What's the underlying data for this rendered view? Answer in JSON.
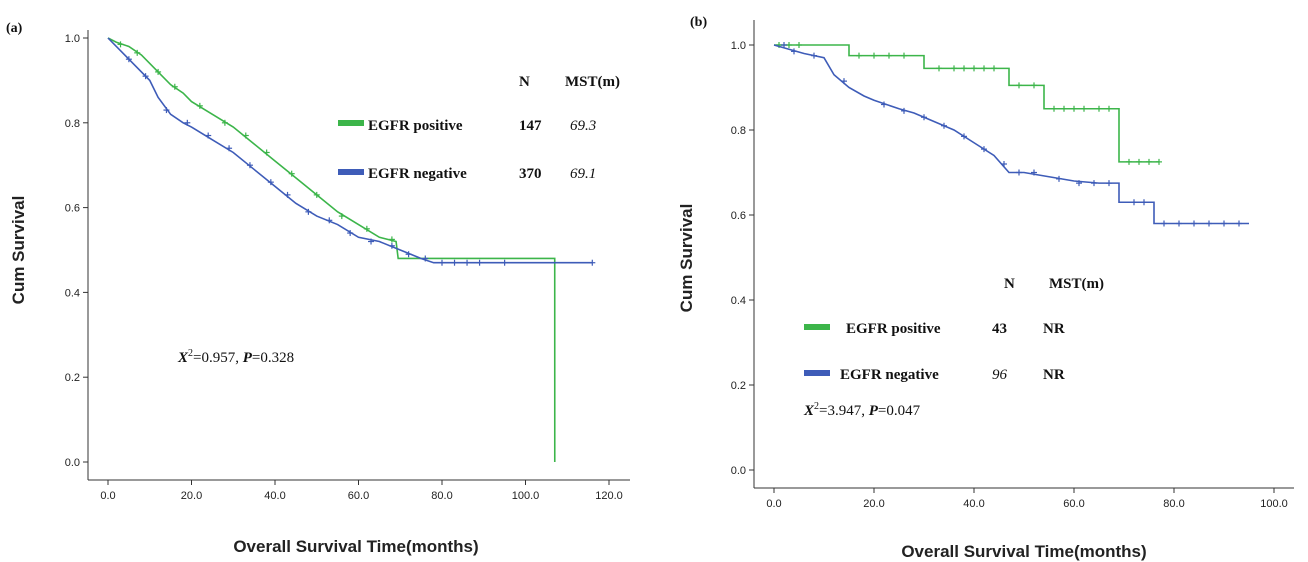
{
  "chart_data": [
    {
      "type": "line",
      "panel_label": "(a)",
      "xlabel": "Overall Survival Time(months)",
      "ylabel": "Cum Survival",
      "xlim": [
        0,
        120
      ],
      "ylim": [
        0,
        1
      ],
      "x_ticks": [
        "0.0",
        "20.0",
        "40.0",
        "60.0",
        "80.0",
        "100.0",
        "120.0"
      ],
      "y_ticks": [
        "0.0",
        "0.2",
        "0.4",
        "0.6",
        "0.8",
        "1.0"
      ],
      "legend_header": {
        "n": "N",
        "mst": "MST(m)"
      },
      "stat_text": {
        "chi": "X",
        "sup": "2",
        "eq": "=0.957, ",
        "p": "P",
        "pval": "=0.328"
      },
      "series": [
        {
          "name": "EGFR positive",
          "n": "147",
          "mst": "69.3",
          "color": "#3cb54a",
          "x": [
            0,
            2,
            5,
            8,
            10,
            12,
            15,
            18,
            20,
            25,
            30,
            35,
            40,
            45,
            50,
            55,
            60,
            65,
            69,
            69.5,
            80,
            90,
            100,
            107,
            107.01
          ],
          "y": [
            1,
            0.99,
            0.98,
            0.96,
            0.94,
            0.92,
            0.89,
            0.87,
            0.85,
            0.82,
            0.79,
            0.75,
            0.71,
            0.67,
            0.63,
            0.59,
            0.56,
            0.53,
            0.52,
            0.48,
            0.48,
            0.48,
            0.48,
            0.48,
            0
          ],
          "censors": [
            [
              3,
              0.985
            ],
            [
              7,
              0.965
            ],
            [
              12,
              0.92
            ],
            [
              16,
              0.885
            ],
            [
              22,
              0.84
            ],
            [
              28,
              0.8
            ],
            [
              33,
              0.77
            ],
            [
              38,
              0.73
            ],
            [
              44,
              0.68
            ],
            [
              50,
              0.63
            ],
            [
              56,
              0.58
            ],
            [
              62,
              0.55
            ],
            [
              68,
              0.525
            ]
          ]
        },
        {
          "name": "EGFR negative",
          "n": "370",
          "mst": "69.1",
          "color": "#3e5cb8",
          "x": [
            0,
            3,
            6,
            10,
            12,
            15,
            18,
            20,
            25,
            30,
            35,
            40,
            45,
            50,
            55,
            60,
            65,
            70,
            75,
            78,
            90,
            100,
            116
          ],
          "y": [
            1,
            0.97,
            0.94,
            0.9,
            0.86,
            0.82,
            0.8,
            0.79,
            0.76,
            0.73,
            0.69,
            0.65,
            0.61,
            0.58,
            0.56,
            0.53,
            0.52,
            0.5,
            0.48,
            0.47,
            0.47,
            0.47,
            0.47
          ],
          "censors": [
            [
              5,
              0.95
            ],
            [
              9,
              0.91
            ],
            [
              14,
              0.83
            ],
            [
              19,
              0.8
            ],
            [
              24,
              0.77
            ],
            [
              29,
              0.74
            ],
            [
              34,
              0.7
            ],
            [
              39,
              0.66
            ],
            [
              43,
              0.63
            ],
            [
              48,
              0.59
            ],
            [
              53,
              0.57
            ],
            [
              58,
              0.54
            ],
            [
              63,
              0.52
            ],
            [
              68,
              0.51
            ],
            [
              72,
              0.49
            ],
            [
              76,
              0.48
            ],
            [
              80,
              0.47
            ],
            [
              83,
              0.47
            ],
            [
              86,
              0.47
            ],
            [
              89,
              0.47
            ],
            [
              95,
              0.47
            ],
            [
              116,
              0.47
            ]
          ]
        }
      ]
    },
    {
      "type": "line",
      "panel_label": "(b)",
      "xlabel": "Overall Survival Time(months)",
      "ylabel": "Cum Survival",
      "xlim": [
        0,
        100
      ],
      "ylim": [
        0,
        1
      ],
      "x_ticks": [
        "0.0",
        "20.0",
        "40.0",
        "60.0",
        "80.0",
        "100.0"
      ],
      "y_ticks": [
        "0.0",
        "0.2",
        "0.4",
        "0.6",
        "0.8",
        "1.0"
      ],
      "legend_header": {
        "n": "N",
        "mst": "MST(m)"
      },
      "stat_text": {
        "chi": "X",
        "sup": "2",
        "eq": "=3.947, ",
        "p": "P",
        "pval": "=0.047"
      },
      "series": [
        {
          "name": "EGFR positive",
          "n": "43",
          "mst": "NR",
          "color": "#3cb54a",
          "x": [
            0,
            15,
            15,
            30,
            30,
            47,
            47,
            54,
            54,
            69,
            69,
            77
          ],
          "y": [
            1,
            1,
            0.975,
            0.975,
            0.945,
            0.945,
            0.905,
            0.905,
            0.85,
            0.85,
            0.725,
            0.725
          ],
          "censors": [
            [
              1,
              1
            ],
            [
              3,
              1
            ],
            [
              5,
              1
            ],
            [
              17,
              0.975
            ],
            [
              20,
              0.975
            ],
            [
              23,
              0.975
            ],
            [
              26,
              0.975
            ],
            [
              33,
              0.945
            ],
            [
              36,
              0.945
            ],
            [
              38,
              0.945
            ],
            [
              40,
              0.945
            ],
            [
              42,
              0.945
            ],
            [
              44,
              0.945
            ],
            [
              49,
              0.905
            ],
            [
              52,
              0.905
            ],
            [
              56,
              0.85
            ],
            [
              58,
              0.85
            ],
            [
              60,
              0.85
            ],
            [
              62,
              0.85
            ],
            [
              65,
              0.85
            ],
            [
              67,
              0.85
            ],
            [
              71,
              0.725
            ],
            [
              73,
              0.725
            ],
            [
              75,
              0.725
            ],
            [
              77,
              0.725
            ]
          ]
        },
        {
          "name": "EGFR negative",
          "n": "96",
          "mst": "NR",
          "color": "#3e5cb8",
          "x": [
            0,
            3,
            6,
            10,
            12,
            15,
            18,
            20,
            25,
            28,
            32,
            36,
            40,
            44,
            47,
            50,
            55,
            60,
            65,
            69,
            69,
            76,
            76,
            95
          ],
          "y": [
            1,
            0.99,
            0.98,
            0.97,
            0.93,
            0.9,
            0.88,
            0.87,
            0.85,
            0.84,
            0.82,
            0.8,
            0.77,
            0.74,
            0.7,
            0.7,
            0.69,
            0.68,
            0.675,
            0.675,
            0.63,
            0.63,
            0.58,
            0.58
          ],
          "censors": [
            [
              2,
              1
            ],
            [
              4,
              0.985
            ],
            [
              8,
              0.975
            ],
            [
              14,
              0.915
            ],
            [
              22,
              0.86
            ],
            [
              26,
              0.845
            ],
            [
              30,
              0.83
            ],
            [
              34,
              0.81
            ],
            [
              38,
              0.785
            ],
            [
              42,
              0.755
            ],
            [
              46,
              0.72
            ],
            [
              49,
              0.7
            ],
            [
              52,
              0.7
            ],
            [
              57,
              0.685
            ],
            [
              61,
              0.675
            ],
            [
              64,
              0.675
            ],
            [
              67,
              0.675
            ],
            [
              72,
              0.63
            ],
            [
              74,
              0.63
            ],
            [
              78,
              0.58
            ],
            [
              81,
              0.58
            ],
            [
              84,
              0.58
            ],
            [
              87,
              0.58
            ],
            [
              90,
              0.58
            ],
            [
              93,
              0.58
            ]
          ]
        }
      ]
    }
  ]
}
